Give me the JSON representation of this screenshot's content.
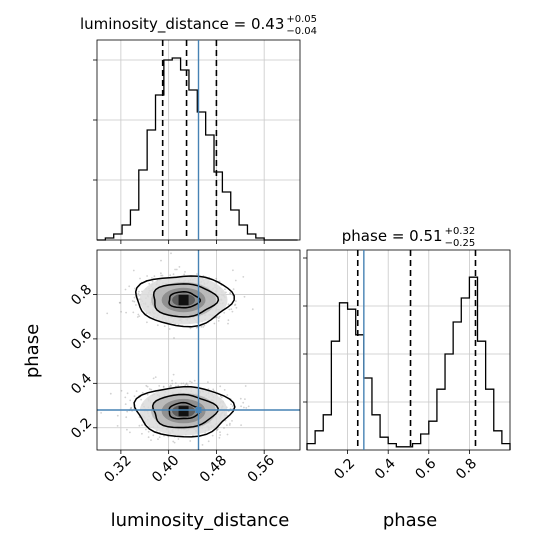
{
  "chart_data": [
    {
      "type": "histogram",
      "panel": "luminosity_distance-marginal",
      "title": {
        "prefix": "luminosity_distance = ",
        "value": "0.43",
        "upper": "+0.05",
        "lower": "−0.04"
      },
      "xlim": [
        0.28,
        0.62
      ],
      "xticks": [
        0.32,
        0.4,
        0.48,
        0.56
      ],
      "bins_x": [
        0.28,
        0.294,
        0.308,
        0.322,
        0.336,
        0.35,
        0.364,
        0.378,
        0.392,
        0.406,
        0.42,
        0.434,
        0.448,
        0.462,
        0.476,
        0.49,
        0.504,
        0.518,
        0.532,
        0.546,
        0.56,
        0.574,
        0.588,
        0.602,
        0.616
      ],
      "counts": [
        0,
        2,
        6,
        15,
        30,
        70,
        110,
        145,
        180,
        182,
        170,
        150,
        128,
        105,
        68,
        48,
        30,
        15,
        6,
        2,
        0,
        0,
        0,
        0
      ],
      "ylim": [
        0,
        200
      ],
      "quantile_lines": [
        0.39,
        0.43,
        0.48
      ],
      "truth": 0.45,
      "grid": true
    },
    {
      "type": "histogram",
      "panel": "phase-marginal",
      "title": {
        "prefix": "phase = ",
        "value": "0.51",
        "upper": "+0.32",
        "lower": "−0.25"
      },
      "xlim": [
        0.0,
        1.0
      ],
      "xticks": [
        0.2,
        0.4,
        0.6,
        0.8
      ],
      "bins_x": [
        0.0,
        0.04,
        0.08,
        0.12,
        0.16,
        0.2,
        0.24,
        0.28,
        0.32,
        0.36,
        0.4,
        0.44,
        0.48,
        0.52,
        0.56,
        0.6,
        0.64,
        0.68,
        0.72,
        0.76,
        0.8,
        0.84,
        0.88,
        0.92,
        0.96,
        1.0
      ],
      "counts": [
        4,
        12,
        22,
        68,
        92,
        88,
        72,
        45,
        22,
        8,
        4,
        2,
        2,
        4,
        10,
        18,
        38,
        60,
        80,
        95,
        108,
        68,
        38,
        12,
        4
      ],
      "ylim": [
        0,
        125
      ],
      "quantile_lines": [
        0.25,
        0.51,
        0.83
      ],
      "truth": 0.28,
      "grid": true
    },
    {
      "type": "scatter",
      "panel": "phase-vs-luminosity_distance",
      "xlabel": "luminosity_distance",
      "ylabel": "phase",
      "xlim": [
        0.28,
        0.62
      ],
      "ylim": [
        0.1,
        1.0
      ],
      "xticks": [
        0.32,
        0.4,
        0.48,
        0.56
      ],
      "yticks": [
        0.2,
        0.4,
        0.6,
        0.8
      ],
      "modes": [
        {
          "center": [
            0.425,
            0.775
          ],
          "spread": [
            0.035,
            0.055
          ]
        },
        {
          "center": [
            0.425,
            0.275
          ],
          "spread": [
            0.035,
            0.055
          ]
        }
      ],
      "contour_levels": [
        1,
        2,
        3
      ],
      "truth": {
        "x": 0.45,
        "y": 0.28
      },
      "grid": true
    }
  ],
  "labels": {
    "x_left": "luminosity_distance",
    "x_right": "phase",
    "y_left": "phase"
  },
  "colors": {
    "truth": "#4682b4",
    "grid": "#c8c8c8",
    "hist": "#000000"
  }
}
